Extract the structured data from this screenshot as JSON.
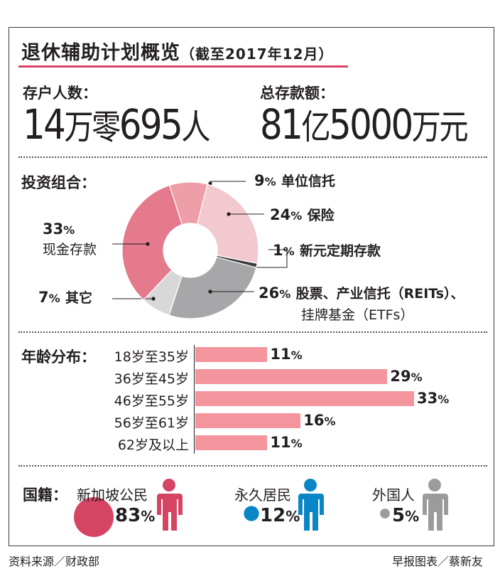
{
  "title": "退休辅助计划概览",
  "title_sub": "（截至2017年12月）",
  "depositors": {
    "label": "存户人数：",
    "num1": "14",
    "unit1": "万零",
    "num2": "695",
    "unit2": "人"
  },
  "total": {
    "label": "总存款额：",
    "num1": "81",
    "unit1": "亿",
    "num2": "5000",
    "unit2": "万元"
  },
  "portfolio_label": "投资组合：",
  "age_label": "年龄分布：",
  "nationality_label": "国籍：",
  "percent_sign": "%",
  "chart_data": [
    {
      "type": "pie",
      "title": "投资组合：",
      "slices": [
        {
          "label": "单位信托",
          "value": 9,
          "color": "#ee9ea7"
        },
        {
          "label": "保险",
          "value": 24,
          "color": "#f2c9ce"
        },
        {
          "label": "新元定期存款",
          "value": 1,
          "color": "#3d3d3d"
        },
        {
          "label": "股票、产业信托（REITs）、",
          "label2": "挂牌基金（ETFs）",
          "value": 26,
          "color": "#a7a6a8"
        },
        {
          "label": "其它",
          "value": 7,
          "color": "#d8d8d9"
        },
        {
          "label": "现金存款",
          "value": 33,
          "color": "#e47a8b"
        }
      ]
    },
    {
      "type": "bar",
      "orientation": "horizontal",
      "title": "年龄分布：",
      "categories": [
        "18岁至35岁",
        "36岁至45岁",
        "46岁至55岁",
        "56岁至61岁",
        "62岁及以上"
      ],
      "values": [
        11,
        29,
        33,
        16,
        11
      ],
      "unit": "%",
      "color": "#f4959e",
      "xlim": [
        0,
        33
      ]
    },
    {
      "type": "bubble",
      "title": "国籍：",
      "categories": [
        "新加坡公民",
        "永久居民",
        "外国人"
      ],
      "values": [
        83,
        12,
        5
      ],
      "colors": [
        "#d64463",
        "#0a86c6",
        "#9b9b9b"
      ],
      "icons": [
        "person-icon",
        "person-icon",
        "person-icon"
      ]
    }
  ],
  "footer": {
    "source": "资料来源／财政部",
    "credit": "早报图表／蔡新友"
  }
}
